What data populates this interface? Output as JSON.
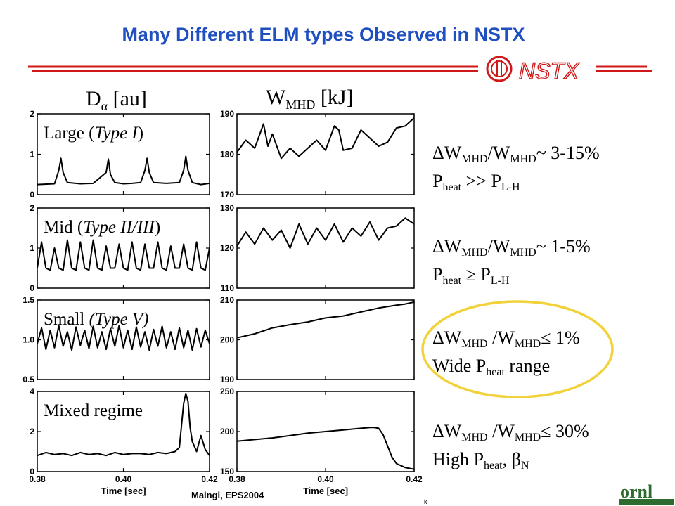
{
  "slide": {
    "title": "Many Different ELM types Observed in NSTX",
    "logo_text": "NSTX",
    "footer": "Maingi, EPS2004",
    "footer_mark": "k",
    "org_logo_text": "ornl",
    "colors": {
      "title": "#1f4fc0",
      "brand_red": "#d01818",
      "highlight": "#f2d23a"
    }
  },
  "columns": {
    "left": {
      "symbol": "D",
      "greek": "α",
      "unit": "[au]"
    },
    "right": {
      "symbol": "W",
      "sub": "MHD",
      "unit": "[kJ]"
    }
  },
  "notes": [
    {
      "l1_a": "ΔW",
      "l1_s1": "MHD",
      "l1_b": "/W",
      "l1_s2": "MHD",
      "l1_c": "~ 3-15%",
      "l2_a": "P",
      "l2_s1": "heat",
      "l2_b": " >> P",
      "l2_s2": "L-H"
    },
    {
      "l1_a": "ΔW",
      "l1_s1": "MHD",
      "l1_b": "/W",
      "l1_s2": "MHD",
      "l1_c": "~ 1-5%",
      "l2_a": "P",
      "l2_s1": "heat",
      "l2_b": " ≥ P",
      "l2_s2": "L-H"
    },
    {
      "l1_a": "ΔW",
      "l1_s1": "MHD",
      "l1_b": " /W",
      "l1_s2": "MHD",
      "l1_c": "≤ 1%",
      "l2_a": "Wide P",
      "l2_s1": "heat",
      "l2_b": " range",
      "l2_s2": ""
    },
    {
      "l1_a": "ΔW",
      "l1_s1": "MHD",
      "l1_b": " /W",
      "l1_s2": "MHD",
      "l1_c": "≤ 30%",
      "l2_a": "High P",
      "l2_s1": "heat",
      "l2_b": ", β",
      "l2_s2": "N"
    }
  ],
  "chart_data": [
    {
      "type": "line",
      "panel": "left-1",
      "label_plain": "Large (",
      "label_italic": "Type I",
      "label_end": ")",
      "xlim": [
        0.38,
        0.42
      ],
      "ylim": [
        0,
        2
      ],
      "yticks": [
        "0",
        "1",
        "2"
      ],
      "x": [
        0.38,
        0.384,
        0.385,
        0.3855,
        0.386,
        0.387,
        0.39,
        0.393,
        0.396,
        0.396,
        0.3965,
        0.397,
        0.398,
        0.4,
        0.402,
        0.404,
        0.405,
        0.4055,
        0.406,
        0.407,
        0.41,
        0.413,
        0.414,
        0.4145,
        0.415,
        0.416,
        0.418,
        0.42
      ],
      "y": [
        0.25,
        0.27,
        0.6,
        0.9,
        0.55,
        0.3,
        0.27,
        0.28,
        0.55,
        0.55,
        0.88,
        0.5,
        0.3,
        0.27,
        0.28,
        0.3,
        0.6,
        0.9,
        0.55,
        0.3,
        0.28,
        0.3,
        0.6,
        0.95,
        0.6,
        0.3,
        0.25,
        0.28
      ]
    },
    {
      "type": "line",
      "panel": "left-2",
      "label_plain": "Mid (",
      "label_italic": "Type II/III",
      "label_end": ")",
      "xlim": [
        0.38,
        0.42
      ],
      "ylim": [
        0,
        2
      ],
      "yticks": [
        "0",
        "1",
        "2"
      ],
      "x": [
        0.38,
        0.381,
        0.382,
        0.383,
        0.384,
        0.385,
        0.386,
        0.387,
        0.388,
        0.389,
        0.39,
        0.391,
        0.392,
        0.393,
        0.394,
        0.395,
        0.396,
        0.397,
        0.398,
        0.399,
        0.4,
        0.401,
        0.402,
        0.403,
        0.404,
        0.405,
        0.406,
        0.407,
        0.408,
        0.409,
        0.41,
        0.411,
        0.412,
        0.413,
        0.414,
        0.415,
        0.416,
        0.417,
        0.418,
        0.419,
        0.42
      ],
      "y": [
        0.5,
        1.15,
        0.5,
        0.45,
        1.0,
        0.5,
        0.45,
        1.2,
        0.5,
        0.45,
        1.15,
        0.5,
        0.45,
        1.2,
        0.5,
        0.45,
        1.05,
        0.5,
        0.5,
        1.1,
        0.5,
        0.45,
        1.15,
        0.5,
        0.45,
        1.1,
        0.5,
        0.5,
        1.15,
        0.5,
        0.45,
        1.05,
        0.5,
        0.5,
        1.1,
        0.5,
        0.45,
        1.15,
        0.5,
        0.45,
        1.0
      ]
    },
    {
      "type": "line",
      "panel": "left-3",
      "label_plain": "Small ",
      "label_italic": "(Type V)",
      "label_end": "",
      "xlim": [
        0.38,
        0.42
      ],
      "ylim": [
        0.5,
        1.5
      ],
      "yticks": [
        "0.5",
        "1.0",
        "1.5"
      ],
      "x": [
        0.38,
        0.381,
        0.382,
        0.383,
        0.384,
        0.385,
        0.386,
        0.387,
        0.388,
        0.389,
        0.39,
        0.391,
        0.392,
        0.393,
        0.394,
        0.395,
        0.396,
        0.397,
        0.398,
        0.399,
        0.4,
        0.401,
        0.402,
        0.403,
        0.404,
        0.405,
        0.406,
        0.407,
        0.408,
        0.409,
        0.41,
        0.411,
        0.412,
        0.413,
        0.414,
        0.415,
        0.416,
        0.417,
        0.418,
        0.419,
        0.42
      ],
      "y": [
        0.95,
        1.15,
        0.88,
        1.12,
        0.9,
        1.18,
        0.92,
        1.1,
        0.87,
        1.16,
        0.93,
        1.12,
        0.89,
        1.17,
        0.9,
        1.1,
        0.88,
        1.14,
        0.92,
        1.18,
        0.9,
        1.12,
        0.88,
        1.16,
        0.91,
        1.1,
        0.87,
        1.13,
        0.92,
        1.17,
        0.9,
        1.1,
        0.88,
        1.15,
        0.9,
        1.12,
        0.87,
        1.14,
        0.91,
        1.12,
        0.95
      ]
    },
    {
      "type": "line",
      "panel": "left-4",
      "label_plain": "Mixed regime",
      "label_italic": "",
      "label_end": "",
      "xlim": [
        0.38,
        0.42
      ],
      "ylim": [
        0,
        4
      ],
      "yticks": [
        "0",
        "2",
        "4"
      ],
      "x": [
        0.38,
        0.382,
        0.384,
        0.386,
        0.388,
        0.39,
        0.392,
        0.394,
        0.396,
        0.398,
        0.4,
        0.402,
        0.404,
        0.406,
        0.408,
        0.41,
        0.412,
        0.413,
        0.414,
        0.4145,
        0.415,
        0.4155,
        0.416,
        0.417,
        0.418,
        0.419,
        0.42
      ],
      "y": [
        0.8,
        0.95,
        0.85,
        0.9,
        0.8,
        0.95,
        0.85,
        0.9,
        0.8,
        0.95,
        0.85,
        0.9,
        0.9,
        0.85,
        0.95,
        0.9,
        1.0,
        1.2,
        3.4,
        3.9,
        3.5,
        2.2,
        1.5,
        1.0,
        1.8,
        1.1,
        0.8
      ]
    },
    {
      "type": "line",
      "panel": "right-1",
      "xlim": [
        0.38,
        0.42
      ],
      "ylim": [
        170,
        190
      ],
      "yticks": [
        "170",
        "180",
        "190"
      ],
      "x": [
        0.38,
        0.382,
        0.384,
        0.386,
        0.387,
        0.388,
        0.39,
        0.392,
        0.394,
        0.396,
        0.398,
        0.4,
        0.402,
        0.403,
        0.404,
        0.406,
        0.408,
        0.41,
        0.412,
        0.414,
        0.416,
        0.418,
        0.42
      ],
      "y": [
        180.5,
        183.5,
        181.5,
        187.5,
        182,
        185,
        179,
        181.5,
        179.5,
        181.5,
        183.5,
        181,
        187,
        186,
        181,
        181.5,
        186,
        184,
        182,
        183,
        186.5,
        187,
        189
      ]
    },
    {
      "type": "line",
      "panel": "right-2",
      "xlim": [
        0.38,
        0.42
      ],
      "ylim": [
        110,
        130
      ],
      "yticks": [
        "110",
        "120",
        "130"
      ],
      "x": [
        0.38,
        0.382,
        0.384,
        0.386,
        0.388,
        0.39,
        0.392,
        0.394,
        0.396,
        0.398,
        0.4,
        0.402,
        0.404,
        0.406,
        0.408,
        0.41,
        0.412,
        0.414,
        0.416,
        0.418,
        0.42
      ],
      "y": [
        120.5,
        124,
        121,
        125,
        122,
        124.5,
        120,
        126,
        121,
        125,
        122,
        126,
        121.5,
        125,
        123,
        126.5,
        122,
        125,
        125.5,
        127.5,
        126
      ]
    },
    {
      "type": "line",
      "panel": "right-3",
      "xlim": [
        0.38,
        0.42
      ],
      "ylim": [
        190,
        210
      ],
      "yticks": [
        "190",
        "200",
        "210"
      ],
      "x": [
        0.38,
        0.384,
        0.388,
        0.392,
        0.396,
        0.4,
        0.404,
        0.408,
        0.412,
        0.416,
        0.418,
        0.42
      ],
      "y": [
        200.5,
        201.5,
        203,
        203.8,
        204.5,
        205.5,
        206,
        207,
        208,
        208.7,
        209,
        209.5
      ]
    },
    {
      "type": "line",
      "panel": "right-4",
      "xlim": [
        0.38,
        0.42
      ],
      "ylim": [
        150,
        250
      ],
      "yticks": [
        "150",
        "200",
        "250"
      ],
      "x": [
        0.38,
        0.384,
        0.388,
        0.392,
        0.396,
        0.4,
        0.404,
        0.408,
        0.41,
        0.411,
        0.412,
        0.413,
        0.414,
        0.415,
        0.416,
        0.418,
        0.42
      ],
      "y": [
        188,
        190,
        192,
        195,
        198,
        200,
        202,
        204,
        205,
        205,
        204,
        196,
        182,
        168,
        160,
        155,
        153
      ]
    }
  ],
  "axes": {
    "x_ticks": [
      "0.38",
      "0.40",
      "0.42"
    ],
    "x_label": "Time [sec]"
  }
}
